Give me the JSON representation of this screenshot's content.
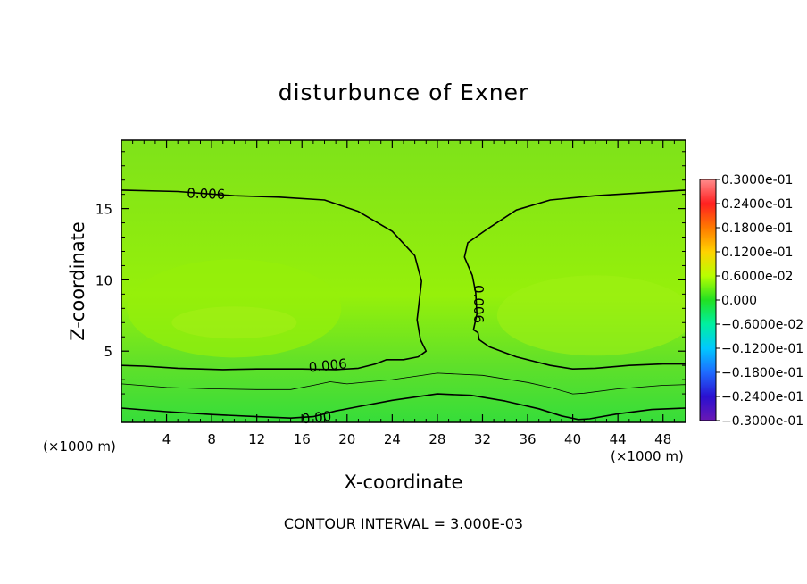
{
  "chart_data": {
    "type": "heatmap",
    "title": "disturbunce of Exner",
    "xlabel": "X-coordinate",
    "ylabel": "Z-coordinate",
    "x_unit_left": "(×1000 m)",
    "x_unit_right": "(×1000 m)",
    "xlim": [
      0,
      50
    ],
    "ylim": [
      0,
      19.8
    ],
    "x_ticks": [
      4,
      8,
      12,
      16,
      20,
      24,
      28,
      32,
      36,
      40,
      44,
      48
    ],
    "y_ticks": [
      5,
      10,
      15
    ],
    "footer": "CONTOUR INTERVAL = 3.000E-03",
    "colorbar": {
      "labels": [
        "0.3000e-01",
        "0.2400e-01",
        "0.1800e-01",
        "0.1200e-01",
        "0.6000e-02",
        "0.000",
        "−0.6000e-02",
        "−0.1200e-01",
        "−0.1800e-01",
        "−0.2400e-01",
        "−0.3000e-01"
      ],
      "values": [
        0.03,
        0.024,
        0.018,
        0.012,
        0.006,
        0.0,
        -0.006,
        -0.012,
        -0.018,
        -0.024,
        -0.03
      ],
      "colors": [
        "#ff8c8c",
        "#ff2020",
        "#ff7a00",
        "#ffd200",
        "#b8ff00",
        "#22e022",
        "#00f0a0",
        "#00c8ff",
        "#1e6bff",
        "#2a10d0",
        "#6a18b4"
      ]
    },
    "field_colors": {
      "top": "#7ee21a",
      "middle": "#96f00a",
      "lower": "#5fe02a",
      "bottom": "#36dd3a"
    },
    "contours": [
      {
        "label": "0.006",
        "weight": "bold",
        "points": [
          [
            0,
            16.3
          ],
          [
            5,
            16.2
          ],
          [
            10,
            15.9
          ],
          [
            14,
            15.8
          ],
          [
            18,
            15.6
          ],
          [
            21,
            14.8
          ],
          [
            24,
            13.4
          ],
          [
            26,
            11.7
          ],
          [
            26.6,
            9.9
          ],
          [
            26.2,
            7.2
          ],
          [
            26.5,
            5.8
          ],
          [
            27,
            5.0
          ],
          [
            26.3,
            4.6
          ],
          [
            25,
            4.4
          ],
          [
            23.5,
            4.4
          ],
          [
            22.5,
            4.1
          ],
          [
            21,
            3.8
          ],
          [
            19,
            3.7
          ],
          [
            16,
            3.75
          ],
          [
            12,
            3.75
          ],
          [
            9,
            3.7
          ],
          [
            5,
            3.8
          ],
          [
            2,
            3.95
          ],
          [
            0,
            4.0
          ]
        ]
      },
      {
        "label": "0.006",
        "weight": "bold",
        "points": [
          [
            50,
            16.3
          ],
          [
            46,
            16.1
          ],
          [
            42,
            15.9
          ],
          [
            38,
            15.6
          ],
          [
            35,
            14.9
          ],
          [
            32.5,
            13.6
          ],
          [
            30.7,
            12.6
          ],
          [
            30.4,
            11.6
          ],
          [
            31.1,
            10.3
          ],
          [
            31.4,
            9.1
          ],
          [
            31.5,
            7.6
          ],
          [
            31.2,
            6.5
          ],
          [
            31.6,
            6.3
          ],
          [
            31.7,
            5.8
          ],
          [
            32.6,
            5.3
          ],
          [
            35,
            4.6
          ],
          [
            38,
            4.0
          ],
          [
            40,
            3.75
          ],
          [
            42,
            3.8
          ],
          [
            45,
            4.0
          ],
          [
            48,
            4.1
          ],
          [
            50,
            4.1
          ]
        ]
      },
      {
        "label": "",
        "weight": "thin",
        "points": [
          [
            0,
            2.7
          ],
          [
            4,
            2.45
          ],
          [
            8,
            2.35
          ],
          [
            12,
            2.3
          ],
          [
            15,
            2.3
          ],
          [
            17,
            2.6
          ],
          [
            18.5,
            2.85
          ],
          [
            20,
            2.7
          ],
          [
            24,
            3.0
          ],
          [
            28,
            3.45
          ],
          [
            32,
            3.3
          ],
          [
            36,
            2.8
          ],
          [
            38,
            2.45
          ],
          [
            40,
            2.0
          ],
          [
            41,
            2.05
          ],
          [
            44,
            2.35
          ],
          [
            48,
            2.6
          ],
          [
            50,
            2.65
          ]
        ]
      },
      {
        "label": "0.00",
        "weight": "bold",
        "points": [
          [
            0,
            1.0
          ],
          [
            4,
            0.75
          ],
          [
            8,
            0.55
          ],
          [
            12,
            0.4
          ],
          [
            15,
            0.3
          ],
          [
            17,
            0.4
          ],
          [
            19,
            0.8
          ],
          [
            21,
            1.1
          ],
          [
            24,
            1.55
          ],
          [
            28,
            2.0
          ],
          [
            31,
            1.9
          ],
          [
            34,
            1.5
          ],
          [
            37,
            0.95
          ],
          [
            39,
            0.45
          ],
          [
            40.5,
            0.2
          ],
          [
            41.5,
            0.25
          ],
          [
            44,
            0.6
          ],
          [
            47,
            0.9
          ],
          [
            50,
            1.0
          ]
        ]
      }
    ],
    "contour_labels": [
      {
        "text": "0.006",
        "x": 7.5,
        "y": 16.0,
        "angle": 2
      },
      {
        "text": "0.006",
        "x": 18.3,
        "y": 3.95,
        "angle": -6
      },
      {
        "text": "0.006",
        "x": 31.6,
        "y": 8.3,
        "angle": 90
      },
      {
        "text": "0.00",
        "x": 17.3,
        "y": 0.3,
        "angle": -6
      }
    ]
  }
}
